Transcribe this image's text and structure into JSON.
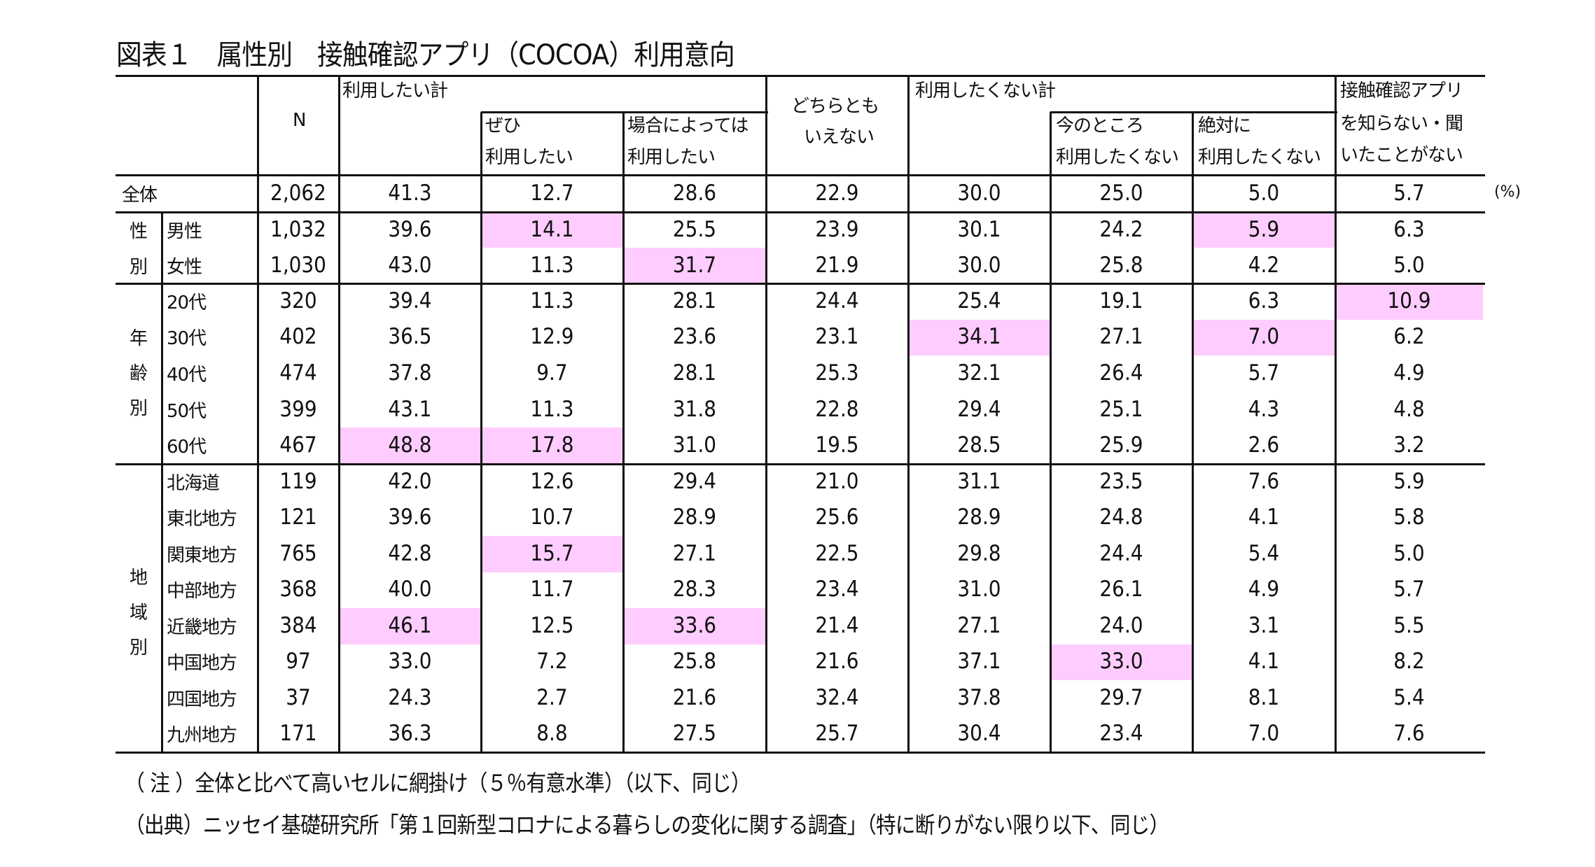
{
  "title": "図表１　属性別　接触確認アプリ（COCOA）利用意向",
  "unit_label": "(%)",
  "header": {
    "n": "N",
    "want_total": "利用したい計",
    "want_definitely_1": "ぜひ",
    "want_definitely_2": "利用したい",
    "want_depends_1": "場合によっては",
    "want_depends_2": "利用したい",
    "neither_1": "どちらとも",
    "neither_2": "いえない",
    "not_want_total": "利用したくない計",
    "not_now_1": "今のところ",
    "not_now_2": "利用したくない",
    "never_1": "絶対に",
    "never_2": "利用したくない",
    "unaware_1": "接触確認アプリ",
    "unaware_2": "を知らない・聞",
    "unaware_3": "いたことがない"
  },
  "groups": {
    "gender": [
      "性",
      "別"
    ],
    "age": [
      "年",
      "齢",
      "別"
    ],
    "region": [
      "地",
      "域",
      "別"
    ]
  },
  "highlight_color": "#ffccff",
  "rows": [
    {
      "label": "全体",
      "group": "all",
      "n": "2,062",
      "values": [
        "41.3",
        "12.7",
        "28.6",
        "22.9",
        "30.0",
        "25.0",
        "5.0",
        "5.7"
      ],
      "hl": []
    },
    {
      "label": "男性",
      "group": "gender",
      "n": "1,032",
      "values": [
        "39.6",
        "14.1",
        "25.5",
        "23.9",
        "30.1",
        "24.2",
        "5.9",
        "6.3"
      ],
      "hl": [
        1,
        6
      ]
    },
    {
      "label": "女性",
      "group": "gender",
      "n": "1,030",
      "values": [
        "43.0",
        "11.3",
        "31.7",
        "21.9",
        "30.0",
        "25.8",
        "4.2",
        "5.0"
      ],
      "hl": [
        2
      ]
    },
    {
      "label": "20代",
      "group": "age",
      "n": "320",
      "values": [
        "39.4",
        "11.3",
        "28.1",
        "24.4",
        "25.4",
        "19.1",
        "6.3",
        "10.9"
      ],
      "hl": [
        7
      ]
    },
    {
      "label": "30代",
      "group": "age",
      "n": "402",
      "values": [
        "36.5",
        "12.9",
        "23.6",
        "23.1",
        "34.1",
        "27.1",
        "7.0",
        "6.2"
      ],
      "hl": [
        4,
        6
      ]
    },
    {
      "label": "40代",
      "group": "age",
      "n": "474",
      "values": [
        "37.8",
        "9.7",
        "28.1",
        "25.3",
        "32.1",
        "26.4",
        "5.7",
        "4.9"
      ],
      "hl": []
    },
    {
      "label": "50代",
      "group": "age",
      "n": "399",
      "values": [
        "43.1",
        "11.3",
        "31.8",
        "22.8",
        "29.4",
        "25.1",
        "4.3",
        "4.8"
      ],
      "hl": []
    },
    {
      "label": "60代",
      "group": "age",
      "n": "467",
      "values": [
        "48.8",
        "17.8",
        "31.0",
        "19.5",
        "28.5",
        "25.9",
        "2.6",
        "3.2"
      ],
      "hl": [
        0,
        1
      ]
    },
    {
      "label": "北海道",
      "group": "region",
      "n": "119",
      "values": [
        "42.0",
        "12.6",
        "29.4",
        "21.0",
        "31.1",
        "23.5",
        "7.6",
        "5.9"
      ],
      "hl": []
    },
    {
      "label": "東北地方",
      "group": "region",
      "n": "121",
      "values": [
        "39.6",
        "10.7",
        "28.9",
        "25.6",
        "28.9",
        "24.8",
        "4.1",
        "5.8"
      ],
      "hl": []
    },
    {
      "label": "関東地方",
      "group": "region",
      "n": "765",
      "values": [
        "42.8",
        "15.7",
        "27.1",
        "22.5",
        "29.8",
        "24.4",
        "5.4",
        "5.0"
      ],
      "hl": [
        1
      ]
    },
    {
      "label": "中部地方",
      "group": "region",
      "n": "368",
      "values": [
        "40.0",
        "11.7",
        "28.3",
        "23.4",
        "31.0",
        "26.1",
        "4.9",
        "5.7"
      ],
      "hl": []
    },
    {
      "label": "近畿地方",
      "group": "region",
      "n": "384",
      "values": [
        "46.1",
        "12.5",
        "33.6",
        "21.4",
        "27.1",
        "24.0",
        "3.1",
        "5.5"
      ],
      "hl": [
        0,
        2
      ]
    },
    {
      "label": "中国地方",
      "group": "region",
      "n": "97",
      "values": [
        "33.0",
        "7.2",
        "25.8",
        "21.6",
        "37.1",
        "33.0",
        "4.1",
        "8.2"
      ],
      "hl": [
        5
      ]
    },
    {
      "label": "四国地方",
      "group": "region",
      "n": "37",
      "values": [
        "24.3",
        "2.7",
        "21.6",
        "32.4",
        "37.8",
        "29.7",
        "8.1",
        "5.4"
      ],
      "hl": []
    },
    {
      "label": "九州地方",
      "group": "region",
      "n": "171",
      "values": [
        "36.3",
        "8.8",
        "27.5",
        "25.7",
        "30.4",
        "23.4",
        "7.0",
        "7.6"
      ],
      "hl": []
    }
  ],
  "footer": {
    "note": "（ 注 ）全体と比べて高いセルに網掛け（５％有意水準）（以下、同じ）",
    "source": "（出典）ニッセイ基礎研究所「第１回新型コロナによる暮らしの変化に関する調査」（特に断りがない限り以下、同じ）"
  }
}
